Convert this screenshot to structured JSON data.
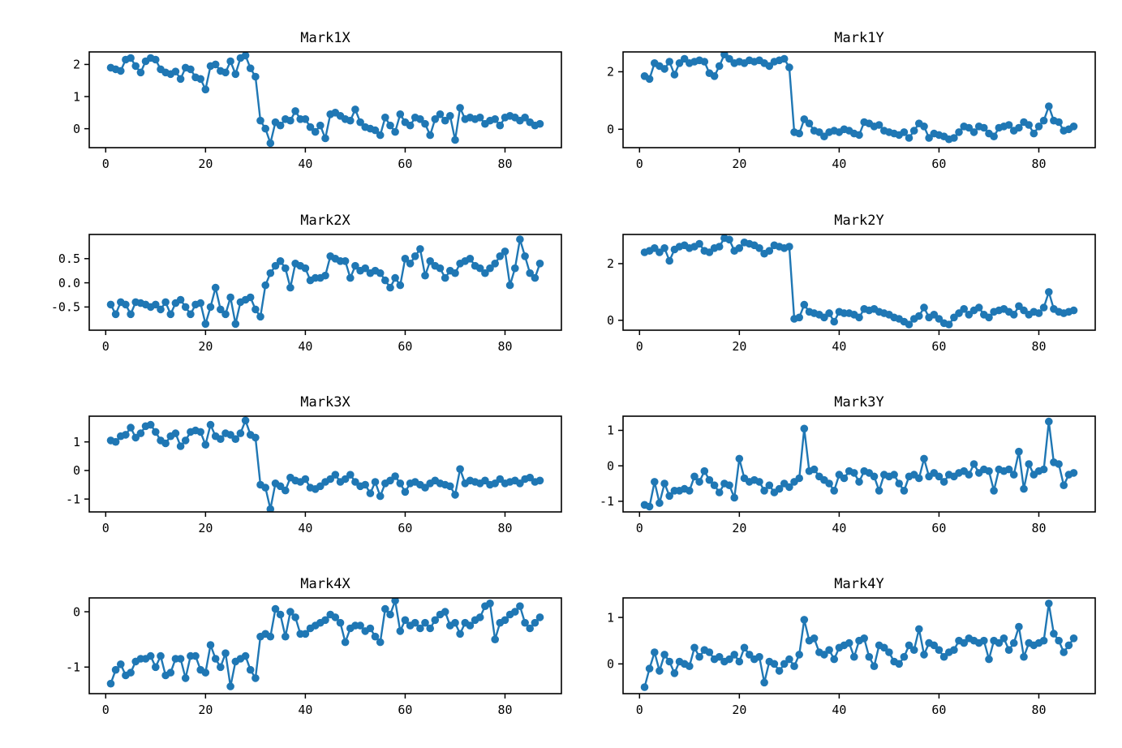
{
  "figure": {
    "background": "#ffffff",
    "accent": "#1f77b4",
    "spine_color": "#000000",
    "text_color": "#000000"
  },
  "chart_data": [
    {
      "type": "line",
      "title": "Mark1X",
      "marker": "circle",
      "legend": "none",
      "grid": false,
      "x_start": 1,
      "xticks": [
        0,
        20,
        40,
        60,
        80
      ],
      "xtick_labels": [
        "0",
        "20",
        "40",
        "60",
        "80"
      ],
      "xlim": [
        -3.3,
        91.3
      ],
      "ytick_values": [
        0,
        1,
        2
      ],
      "ytick_labels": [
        "0",
        "1",
        "2"
      ],
      "ylim": [
        -0.59,
        2.39
      ],
      "values": [
        1.9,
        1.85,
        1.8,
        2.15,
        2.2,
        1.95,
        1.75,
        2.1,
        2.2,
        2.15,
        1.85,
        1.75,
        1.7,
        1.78,
        1.55,
        1.9,
        1.85,
        1.6,
        1.55,
        1.22,
        1.95,
        2.0,
        1.8,
        1.75,
        2.1,
        1.7,
        2.2,
        2.28,
        1.88,
        1.62,
        0.25,
        0.0,
        -0.45,
        0.2,
        0.1,
        0.3,
        0.25,
        0.55,
        0.3,
        0.3,
        0.05,
        -0.1,
        0.1,
        -0.3,
        0.45,
        0.5,
        0.4,
        0.3,
        0.25,
        0.6,
        0.2,
        0.05,
        0.0,
        -0.05,
        -0.2,
        0.35,
        0.1,
        -0.1,
        0.45,
        0.2,
        0.1,
        0.35,
        0.3,
        0.15,
        -0.2,
        0.3,
        0.45,
        0.25,
        0.4,
        -0.35,
        0.65,
        0.3,
        0.35,
        0.3,
        0.35,
        0.15,
        0.25,
        0.3,
        0.1,
        0.35,
        0.4,
        0.35,
        0.25,
        0.35,
        0.2,
        0.1,
        0.15
      ]
    },
    {
      "type": "line",
      "title": "Mark1Y",
      "marker": "circle",
      "legend": "none",
      "grid": false,
      "x_start": 1,
      "xticks": [
        0,
        20,
        40,
        60,
        80
      ],
      "xtick_labels": [
        "0",
        "20",
        "40",
        "60",
        "80"
      ],
      "xlim": [
        -3.3,
        91.3
      ],
      "ytick_values": [
        0,
        2
      ],
      "ytick_labels": [
        "0",
        "2"
      ],
      "ylim": [
        -0.64,
        2.69
      ],
      "values": [
        1.85,
        1.75,
        2.3,
        2.2,
        2.1,
        2.35,
        1.9,
        2.3,
        2.45,
        2.3,
        2.35,
        2.4,
        2.35,
        1.95,
        1.85,
        2.2,
        2.6,
        2.45,
        2.3,
        2.35,
        2.3,
        2.4,
        2.35,
        2.4,
        2.3,
        2.2,
        2.35,
        2.4,
        2.45,
        2.15,
        -0.1,
        -0.15,
        0.35,
        0.2,
        -0.05,
        -0.1,
        -0.25,
        -0.1,
        -0.05,
        -0.1,
        0.0,
        -0.05,
        -0.15,
        -0.2,
        0.25,
        0.2,
        0.1,
        0.15,
        -0.05,
        -0.1,
        -0.15,
        -0.2,
        -0.1,
        -0.3,
        -0.05,
        0.2,
        0.1,
        -0.3,
        -0.15,
        -0.2,
        -0.25,
        -0.35,
        -0.3,
        -0.1,
        0.1,
        0.05,
        -0.1,
        0.1,
        0.05,
        -0.15,
        -0.25,
        0.05,
        0.1,
        0.15,
        -0.05,
        0.05,
        0.25,
        0.15,
        -0.15,
        0.1,
        0.3,
        0.8,
        0.3,
        0.25,
        -0.05,
        0.0,
        0.1
      ]
    },
    {
      "type": "line",
      "title": "Mark2X",
      "marker": "circle",
      "legend": "none",
      "grid": false,
      "x_start": 1,
      "xticks": [
        0,
        20,
        40,
        60,
        80
      ],
      "xtick_labels": [
        "0",
        "20",
        "40",
        "60",
        "80"
      ],
      "xlim": [
        -3.3,
        91.3
      ],
      "ytick_values": [
        -0.5,
        0.0,
        0.5
      ],
      "ytick_labels": [
        "-0.5",
        "0.0",
        "0.5"
      ],
      "ylim": [
        -0.98,
        1.0
      ],
      "values": [
        -0.45,
        -0.65,
        -0.4,
        -0.45,
        -0.65,
        -0.4,
        -0.42,
        -0.45,
        -0.5,
        -0.45,
        -0.55,
        -0.4,
        -0.65,
        -0.42,
        -0.35,
        -0.5,
        -0.65,
        -0.45,
        -0.42,
        -0.85,
        -0.5,
        -0.1,
        -0.55,
        -0.65,
        -0.3,
        -0.85,
        -0.4,
        -0.35,
        -0.3,
        -0.55,
        -0.7,
        -0.05,
        0.2,
        0.35,
        0.45,
        0.3,
        -0.1,
        0.4,
        0.35,
        0.3,
        0.05,
        0.1,
        0.1,
        0.15,
        0.55,
        0.5,
        0.45,
        0.45,
        0.1,
        0.35,
        0.25,
        0.3,
        0.2,
        0.25,
        0.2,
        0.05,
        -0.1,
        0.1,
        -0.05,
        0.5,
        0.4,
        0.55,
        0.7,
        0.15,
        0.45,
        0.35,
        0.3,
        0.1,
        0.25,
        0.2,
        0.4,
        0.45,
        0.5,
        0.35,
        0.3,
        0.2,
        0.3,
        0.4,
        0.55,
        0.65,
        -0.05,
        0.3,
        0.9,
        0.55,
        0.2,
        0.1,
        0.4
      ]
    },
    {
      "type": "line",
      "title": "Mark2Y",
      "marker": "circle",
      "legend": "none",
      "grid": false,
      "x_start": 1,
      "xticks": [
        0,
        20,
        40,
        60,
        80
      ],
      "xtick_labels": [
        "0",
        "20",
        "40",
        "60",
        "80"
      ],
      "xlim": [
        -3.3,
        91.3
      ],
      "ytick_values": [
        0,
        2
      ],
      "ytick_labels": [
        "0",
        "2"
      ],
      "ylim": [
        -0.35,
        3.03
      ],
      "values": [
        2.4,
        2.45,
        2.55,
        2.4,
        2.55,
        2.1,
        2.5,
        2.6,
        2.65,
        2.55,
        2.6,
        2.7,
        2.45,
        2.4,
        2.55,
        2.6,
        2.9,
        2.85,
        2.45,
        2.55,
        2.75,
        2.7,
        2.65,
        2.55,
        2.35,
        2.45,
        2.65,
        2.6,
        2.55,
        2.6,
        0.05,
        0.1,
        0.55,
        0.3,
        0.25,
        0.2,
        0.1,
        0.25,
        -0.05,
        0.3,
        0.25,
        0.25,
        0.2,
        0.1,
        0.4,
        0.35,
        0.4,
        0.3,
        0.25,
        0.2,
        0.1,
        0.05,
        -0.05,
        -0.15,
        0.05,
        0.15,
        0.45,
        0.1,
        0.2,
        0.05,
        -0.1,
        -0.15,
        0.1,
        0.25,
        0.4,
        0.2,
        0.35,
        0.45,
        0.2,
        0.1,
        0.3,
        0.35,
        0.4,
        0.3,
        0.2,
        0.5,
        0.35,
        0.2,
        0.3,
        0.25,
        0.45,
        1.0,
        0.4,
        0.3,
        0.25,
        0.3,
        0.35
      ]
    },
    {
      "type": "line",
      "title": "Mark3X",
      "marker": "circle",
      "legend": "none",
      "grid": false,
      "x_start": 1,
      "xticks": [
        0,
        20,
        40,
        60,
        80
      ],
      "xtick_labels": [
        "0",
        "20",
        "40",
        "60",
        "80"
      ],
      "xlim": [
        -3.3,
        91.3
      ],
      "ytick_values": [
        -1,
        0,
        1
      ],
      "ytick_labels": [
        "-1",
        "0",
        "1"
      ],
      "ylim": [
        -1.45,
        1.9
      ],
      "values": [
        1.05,
        1.0,
        1.2,
        1.25,
        1.5,
        1.15,
        1.3,
        1.55,
        1.6,
        1.35,
        1.05,
        0.95,
        1.2,
        1.3,
        0.85,
        1.05,
        1.35,
        1.4,
        1.35,
        0.9,
        1.6,
        1.2,
        1.1,
        1.3,
        1.25,
        1.1,
        1.3,
        1.75,
        1.25,
        1.15,
        -0.5,
        -0.6,
        -1.35,
        -0.45,
        -0.55,
        -0.7,
        -0.25,
        -0.35,
        -0.4,
        -0.3,
        -0.6,
        -0.65,
        -0.55,
        -0.4,
        -0.3,
        -0.15,
        -0.4,
        -0.3,
        -0.15,
        -0.4,
        -0.55,
        -0.5,
        -0.8,
        -0.4,
        -0.9,
        -0.45,
        -0.35,
        -0.2,
        -0.45,
        -0.75,
        -0.45,
        -0.4,
        -0.5,
        -0.6,
        -0.45,
        -0.35,
        -0.45,
        -0.5,
        -0.55,
        -0.85,
        0.05,
        -0.45,
        -0.35,
        -0.4,
        -0.45,
        -0.35,
        -0.5,
        -0.45,
        -0.3,
        -0.45,
        -0.4,
        -0.35,
        -0.45,
        -0.3,
        -0.25,
        -0.4,
        -0.35
      ]
    },
    {
      "type": "line",
      "title": "Mark3Y",
      "marker": "circle",
      "legend": "none",
      "grid": false,
      "x_start": 1,
      "xticks": [
        0,
        20,
        40,
        60,
        80
      ],
      "xtick_labels": [
        "0",
        "20",
        "40",
        "60",
        "80"
      ],
      "xlim": [
        -3.3,
        91.3
      ],
      "ytick_values": [
        -1,
        0,
        1
      ],
      "ytick_labels": [
        "-1",
        "0",
        "1"
      ],
      "ylim": [
        -1.3,
        1.4
      ],
      "values": [
        -1.1,
        -1.15,
        -0.45,
        -1.05,
        -0.5,
        -0.85,
        -0.7,
        -0.7,
        -0.65,
        -0.7,
        -0.3,
        -0.45,
        -0.15,
        -0.4,
        -0.55,
        -0.75,
        -0.5,
        -0.55,
        -0.9,
        0.2,
        -0.35,
        -0.45,
        -0.4,
        -0.45,
        -0.7,
        -0.55,
        -0.75,
        -0.65,
        -0.5,
        -0.6,
        -0.45,
        -0.35,
        1.05,
        -0.15,
        -0.1,
        -0.3,
        -0.4,
        -0.5,
        -0.7,
        -0.25,
        -0.35,
        -0.15,
        -0.2,
        -0.45,
        -0.15,
        -0.2,
        -0.3,
        -0.7,
        -0.25,
        -0.3,
        -0.25,
        -0.5,
        -0.7,
        -0.3,
        -0.25,
        -0.35,
        0.2,
        -0.3,
        -0.2,
        -0.3,
        -0.45,
        -0.25,
        -0.3,
        -0.2,
        -0.15,
        -0.25,
        0.05,
        -0.2,
        -0.1,
        -0.15,
        -0.7,
        -0.1,
        -0.15,
        -0.1,
        -0.25,
        0.4,
        -0.65,
        0.05,
        -0.25,
        -0.15,
        -0.1,
        1.25,
        0.1,
        0.05,
        -0.55,
        -0.25,
        -0.2
      ]
    },
    {
      "type": "line",
      "title": "Mark4X",
      "marker": "circle",
      "legend": "none",
      "grid": false,
      "x_start": 1,
      "xticks": [
        0,
        20,
        40,
        60,
        80
      ],
      "xtick_labels": [
        "0",
        "20",
        "40",
        "60",
        "80"
      ],
      "xlim": [
        -3.3,
        91.3
      ],
      "ytick_values": [
        -1,
        0
      ],
      "ytick_labels": [
        "-1",
        "0"
      ],
      "ylim": [
        -1.48,
        0.25
      ],
      "values": [
        -1.3,
        -1.05,
        -0.95,
        -1.15,
        -1.1,
        -0.9,
        -0.85,
        -0.85,
        -0.8,
        -1.0,
        -0.8,
        -1.15,
        -1.1,
        -0.85,
        -0.85,
        -1.2,
        -0.8,
        -0.8,
        -1.05,
        -1.1,
        -0.6,
        -0.85,
        -1.0,
        -0.75,
        -1.35,
        -0.9,
        -0.85,
        -0.8,
        -1.05,
        -1.2,
        -0.45,
        -0.4,
        -0.45,
        0.05,
        -0.05,
        -0.45,
        0.0,
        -0.1,
        -0.4,
        -0.4,
        -0.3,
        -0.25,
        -0.2,
        -0.15,
        -0.05,
        -0.1,
        -0.2,
        -0.55,
        -0.3,
        -0.25,
        -0.25,
        -0.35,
        -0.3,
        -0.45,
        -0.55,
        0.05,
        -0.05,
        0.2,
        -0.35,
        -0.15,
        -0.25,
        -0.2,
        -0.3,
        -0.2,
        -0.3,
        -0.15,
        -0.05,
        0.0,
        -0.25,
        -0.2,
        -0.4,
        -0.2,
        -0.25,
        -0.15,
        -0.1,
        0.1,
        0.15,
        -0.5,
        -0.2,
        -0.15,
        -0.05,
        0.0,
        0.1,
        -0.2,
        -0.3,
        -0.2,
        -0.1
      ]
    },
    {
      "type": "line",
      "title": "Mark4Y",
      "marker": "circle",
      "legend": "none",
      "grid": false,
      "x_start": 1,
      "xticks": [
        0,
        20,
        40,
        60,
        80
      ],
      "xtick_labels": [
        "0",
        "20",
        "40",
        "60",
        "80"
      ],
      "xlim": [
        -3.3,
        91.3
      ],
      "ytick_values": [
        0,
        1
      ],
      "ytick_labels": [
        "0",
        "1"
      ],
      "ylim": [
        -0.64,
        1.42
      ],
      "values": [
        -0.5,
        -0.1,
        0.25,
        -0.15,
        0.2,
        0.05,
        -0.2,
        0.05,
        0.0,
        -0.05,
        0.35,
        0.15,
        0.3,
        0.25,
        0.1,
        0.15,
        0.05,
        0.1,
        0.2,
        0.05,
        0.35,
        0.2,
        0.1,
        0.15,
        -0.4,
        0.05,
        0.0,
        -0.15,
        0.0,
        0.1,
        -0.05,
        0.2,
        0.95,
        0.5,
        0.55,
        0.25,
        0.2,
        0.3,
        0.1,
        0.35,
        0.4,
        0.45,
        0.15,
        0.5,
        0.55,
        0.15,
        -0.05,
        0.4,
        0.35,
        0.25,
        0.05,
        0.0,
        0.15,
        0.4,
        0.3,
        0.75,
        0.2,
        0.45,
        0.4,
        0.3,
        0.15,
        0.25,
        0.3,
        0.5,
        0.45,
        0.55,
        0.5,
        0.45,
        0.5,
        0.1,
        0.5,
        0.45,
        0.55,
        0.3,
        0.45,
        0.8,
        0.15,
        0.45,
        0.4,
        0.45,
        0.5,
        1.3,
        0.65,
        0.5,
        0.25,
        0.4,
        0.55
      ]
    }
  ]
}
